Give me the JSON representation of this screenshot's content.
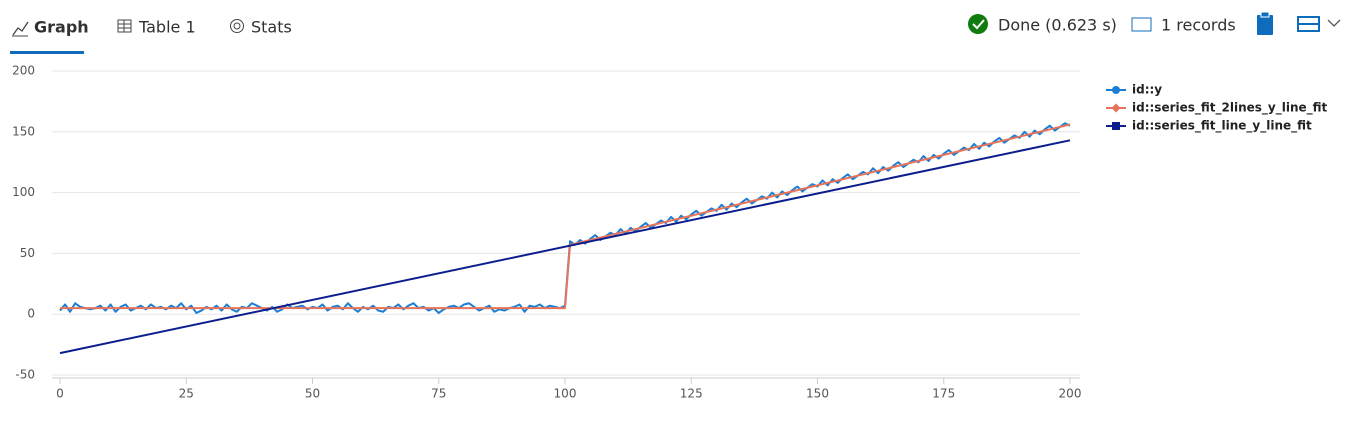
{
  "tabs": [
    "Graph",
    "Table 1",
    "Stats"
  ],
  "status": {
    "done": "Done (0.623 s)",
    "records": "1 records"
  },
  "chart_data": {
    "type": "line",
    "xlim": [
      0,
      200
    ],
    "xticks": [
      0,
      25,
      50,
      75,
      100,
      125,
      150,
      175,
      200
    ],
    "ylim": [
      -50,
      200
    ],
    "yticks": [
      -50,
      0,
      50,
      100,
      150,
      200
    ],
    "grid": true,
    "legend": "right",
    "series": [
      {
        "name": "id::y",
        "color": "#1a7fd4",
        "marker": "circle",
        "x": [
          0,
          1,
          2,
          3,
          4,
          5,
          6,
          7,
          8,
          9,
          10,
          11,
          12,
          13,
          14,
          15,
          16,
          17,
          18,
          19,
          20,
          21,
          22,
          23,
          24,
          25,
          26,
          27,
          28,
          29,
          30,
          31,
          32,
          33,
          34,
          35,
          36,
          37,
          38,
          39,
          40,
          41,
          42,
          43,
          44,
          45,
          46,
          47,
          48,
          49,
          50,
          51,
          52,
          53,
          54,
          55,
          56,
          57,
          58,
          59,
          60,
          61,
          62,
          63,
          64,
          65,
          66,
          67,
          68,
          69,
          70,
          71,
          72,
          73,
          74,
          75,
          76,
          77,
          78,
          79,
          80,
          81,
          82,
          83,
          84,
          85,
          86,
          87,
          88,
          89,
          90,
          91,
          92,
          93,
          94,
          95,
          96,
          97,
          98,
          99,
          100,
          101,
          102,
          103,
          104,
          105,
          106,
          107,
          108,
          109,
          110,
          111,
          112,
          113,
          114,
          115,
          116,
          117,
          118,
          119,
          120,
          121,
          122,
          123,
          124,
          125,
          126,
          127,
          128,
          129,
          130,
          131,
          132,
          133,
          134,
          135,
          136,
          137,
          138,
          139,
          140,
          141,
          142,
          143,
          144,
          145,
          146,
          147,
          148,
          149,
          150,
          151,
          152,
          153,
          154,
          155,
          156,
          157,
          158,
          159,
          160,
          161,
          162,
          163,
          164,
          165,
          166,
          167,
          168,
          169,
          170,
          171,
          172,
          173,
          174,
          175,
          176,
          177,
          178,
          179,
          180,
          181,
          182,
          183,
          184,
          185,
          186,
          187,
          188,
          189,
          190,
          191,
          192,
          193,
          194,
          195,
          196,
          197,
          198,
          199,
          200
        ],
        "values": [
          3,
          8,
          2,
          9,
          6,
          5,
          4,
          5,
          7,
          3,
          8,
          2,
          6,
          8,
          3,
          5,
          7,
          4,
          8,
          5,
          6,
          4,
          7,
          5,
          9,
          4,
          7,
          1,
          3,
          6,
          4,
          7,
          3,
          8,
          4,
          2,
          6,
          5,
          9,
          7,
          5,
          3,
          6,
          2,
          4,
          8,
          5,
          6,
          7,
          4,
          6,
          5,
          8,
          3,
          6,
          7,
          4,
          9,
          5,
          2,
          6,
          4,
          7,
          3,
          2,
          6,
          5,
          8,
          4,
          7,
          9,
          5,
          6,
          3,
          5,
          1,
          4,
          6,
          7,
          5,
          8,
          9,
          6,
          3,
          5,
          7,
          2,
          4,
          3,
          5,
          6,
          8,
          2,
          7,
          6,
          8,
          5,
          7,
          6,
          5,
          7,
          60,
          57,
          61,
          58,
          62,
          65,
          61,
          64,
          67,
          65,
          70,
          66,
          71,
          68,
          72,
          75,
          71,
          74,
          77,
          75,
          80,
          76,
          81,
          78,
          82,
          85,
          81,
          84,
          87,
          85,
          90,
          86,
          91,
          88,
          92,
          95,
          91,
          94,
          97,
          95,
          100,
          96,
          101,
          98,
          102,
          105,
          101,
          104,
          107,
          105,
          110,
          106,
          111,
          108,
          112,
          115,
          111,
          114,
          117,
          115,
          120,
          116,
          121,
          118,
          122,
          125,
          121,
          124,
          127,
          125,
          130,
          126,
          131,
          128,
          132,
          135,
          131,
          134,
          137,
          135,
          140,
          136,
          141,
          138,
          142,
          145,
          141,
          144,
          147,
          145,
          150,
          146,
          151,
          148,
          152,
          155,
          151,
          154,
          157,
          155
        ]
      },
      {
        "name": "id::series_fit_2lines_y_line_fit",
        "color": "#e8735a",
        "marker": "diamond",
        "x": [
          0,
          100,
          101,
          200
        ],
        "values": [
          5,
          5,
          57,
          156
        ]
      },
      {
        "name": "id::series_fit_line_y_line_fit",
        "color": "#0b1e8c",
        "marker": "square",
        "x": [
          0,
          200
        ],
        "values": [
          -32,
          143
        ]
      }
    ]
  }
}
